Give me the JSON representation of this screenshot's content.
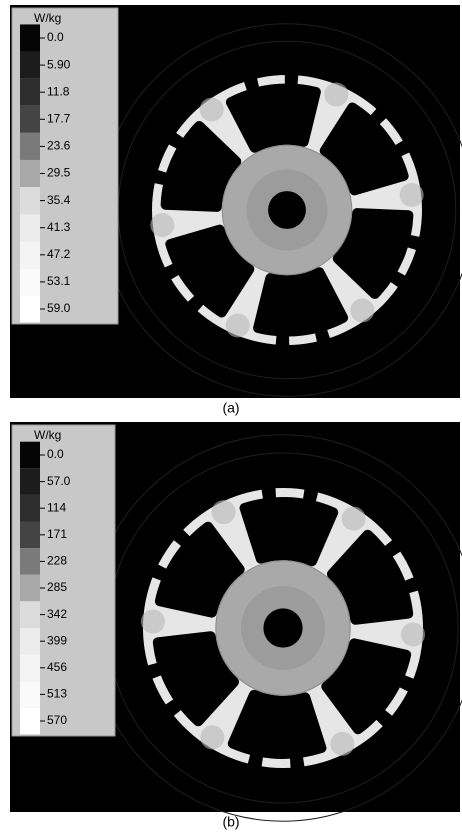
{
  "panels": [
    {
      "unit": "W/kg",
      "levels": [
        "0.0",
        "5.90",
        "11.8",
        "17.7",
        "23.6",
        "29.5",
        "35.4",
        "41.3",
        "47.2",
        "53.1",
        "59.0"
      ],
      "caption": "(a)"
    },
    {
      "unit": "W/kg",
      "levels": [
        "0.0",
        "57.0",
        "114",
        "171",
        "228",
        "285",
        "342",
        "399",
        "456",
        "513",
        "570"
      ],
      "caption": "(b)"
    }
  ]
}
